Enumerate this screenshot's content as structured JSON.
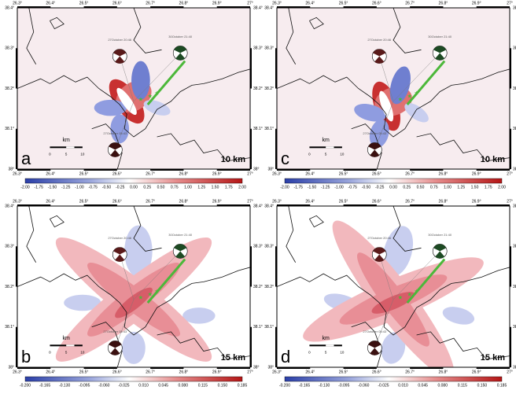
{
  "axes": {
    "lon_ticks": [
      "26.3°",
      "26.4°",
      "26.5°",
      "26.6°",
      "26.7°",
      "26.8°",
      "26.9°",
      "27°"
    ],
    "lat_ticks": [
      "38°",
      "38.1°",
      "38.2°",
      "38.3°",
      "38.4°"
    ]
  },
  "scale_bar": {
    "unit": "km",
    "labels": [
      "0",
      "5",
      "10"
    ]
  },
  "events": [
    "27October 20:46",
    "30October 21:40",
    "27October 05:43"
  ],
  "rows": [
    {
      "colorbar": [
        "-2.00",
        "-1.75",
        "-1.50",
        "-1.25",
        "-1.00",
        "-0.75",
        "-0.50",
        "-0.25",
        "0.00",
        "0.25",
        "0.50",
        "0.75",
        "1.00",
        "1.25",
        "1.50",
        "1.75",
        "2.00"
      ],
      "panels": [
        {
          "letter": "a",
          "depth": "10 km"
        },
        {
          "letter": "c",
          "depth": "10 km"
        }
      ]
    },
    {
      "colorbar": [
        "-0.200",
        "-0.165",
        "-0.130",
        "-0.095",
        "-0.060",
        "-0.025",
        "0.010",
        "0.045",
        "0.080",
        "0.115",
        "0.150",
        "0.185"
      ],
      "panels": [
        {
          "letter": "b",
          "depth": "15 km"
        },
        {
          "letter": "d",
          "depth": "15 km"
        }
      ]
    }
  ]
}
